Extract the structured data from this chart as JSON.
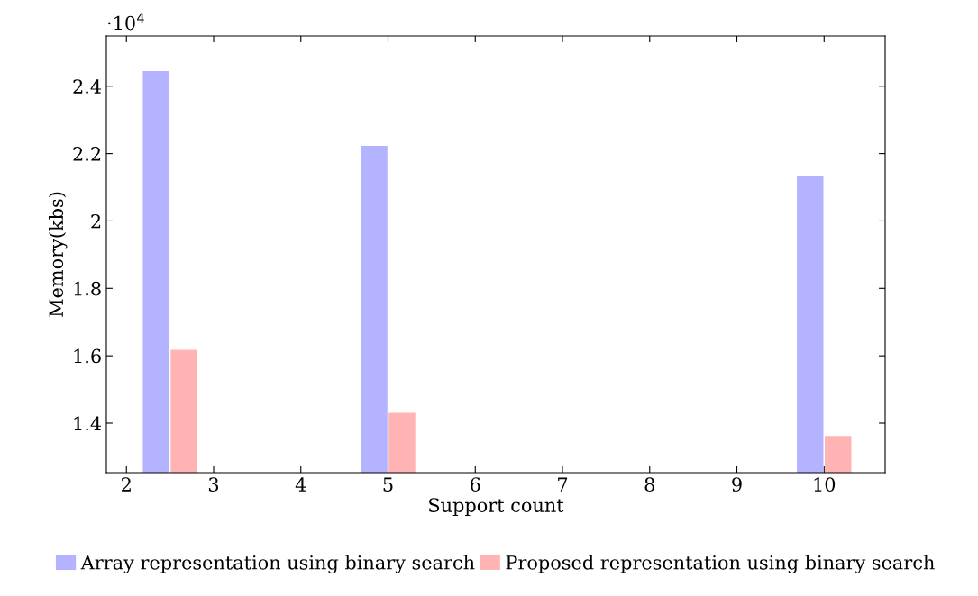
{
  "chart_data": {
    "type": "bar",
    "xlabel": "Support count",
    "ylabel": "Memory(kbs)",
    "x": [
      2.5,
      5,
      10
    ],
    "series": [
      {
        "name": "Array representation using binary search",
        "color": "#b3b3ff",
        "values": [
          2.443,
          2.221,
          2.133
        ]
      },
      {
        "name": "Proposed representation using binary search",
        "color": "#ffb3b3",
        "values": [
          1.616,
          1.429,
          1.36
        ]
      }
    ],
    "xlim": [
      1.77,
      10.7
    ],
    "xticks": [
      2,
      3,
      4,
      5,
      6,
      7,
      8,
      9,
      10
    ],
    "ylim": [
      1.253,
      2.549
    ],
    "yticks": [
      1.4,
      1.6,
      1.8,
      2,
      2.2,
      2.4
    ],
    "annotations": [
      "·10$^{4}$"
    ],
    "grid": false,
    "legend": "bottom"
  }
}
